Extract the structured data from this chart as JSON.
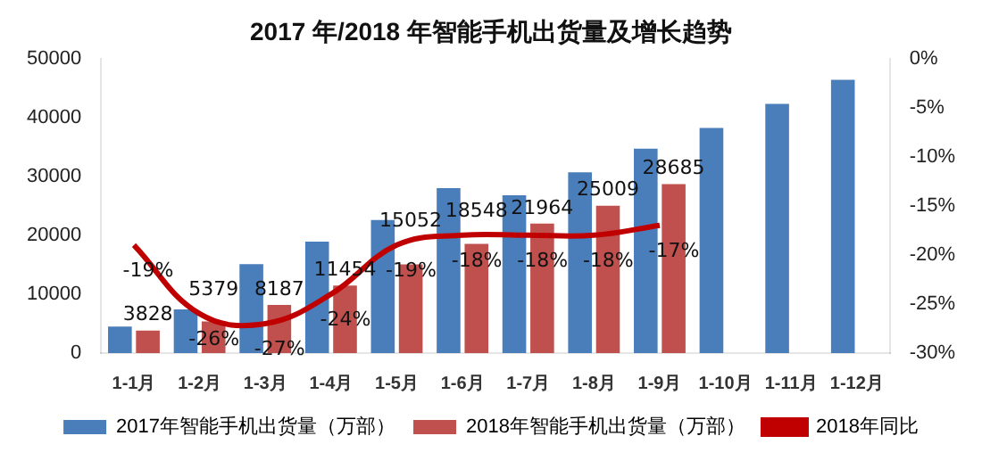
{
  "chart_data": {
    "type": "bar",
    "title": "2017 年/2018 年智能手机出货量及增长趋势",
    "categories": [
      "1-1月",
      "1-2月",
      "1-3月",
      "1-4月",
      "1-5月",
      "1-6月",
      "1-7月",
      "1-8月",
      "1-9月",
      "1-10月",
      "1-11月",
      "1-12月"
    ],
    "series": [
      {
        "name": "2017年智能手机出货量（万部）",
        "color": "#4a7ebb",
        "values": [
          4500,
          7400,
          15100,
          18900,
          22600,
          28000,
          26800,
          30700,
          34700,
          38200,
          42300,
          46400
        ]
      },
      {
        "name": "2018年智能手机出货量（万部）",
        "color": "#c0504d",
        "values": [
          3828,
          5379,
          8187,
          11454,
          15052,
          18548,
          21964,
          25009,
          28685,
          null,
          null,
          null
        ],
        "value_labels": [
          "3828",
          "5379",
          "8187",
          "11454",
          "15052",
          "18548",
          "21964",
          "25009",
          "28685",
          null,
          null,
          null
        ]
      },
      {
        "name": "2018年同比",
        "type": "line",
        "axis": "y2",
        "color": "#c00000",
        "marker": "none",
        "values": [
          -19,
          -26,
          -27,
          -24,
          -19,
          -18,
          -18,
          -18,
          -17,
          null,
          null,
          null
        ],
        "value_labels": [
          "-19%",
          "-26%",
          "-27%",
          "-24%",
          "-19%",
          "-18%",
          "-18%",
          "-18%",
          "-17%",
          null,
          null,
          null
        ]
      }
    ],
    "ylim": [
      0,
      50000
    ],
    "yticks": [
      0,
      10000,
      20000,
      30000,
      40000,
      50000
    ],
    "y2lim": [
      -30,
      0
    ],
    "y2ticks": [
      {
        "value": -30,
        "label": "-30%"
      },
      {
        "value": -25,
        "label": "-25%"
      },
      {
        "value": -20,
        "label": "-20%"
      },
      {
        "value": -15,
        "label": "-15%"
      },
      {
        "value": -10,
        "label": "-10%"
      },
      {
        "value": -5,
        "label": "-5%"
      },
      {
        "value": 0,
        "label": "0%"
      }
    ],
    "legend": "bottom",
    "grid": false
  }
}
